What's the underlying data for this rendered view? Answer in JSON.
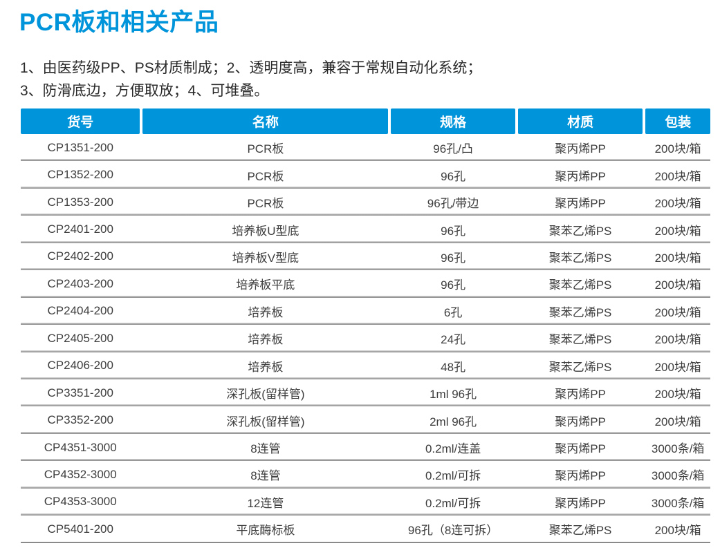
{
  "page": {
    "title": "PCR板和相关产品",
    "description_line_1": "1、由医药级PP、PS材质制成；2、透明度高，兼容于常规自动化系统；",
    "description_line_2": "3、防滑底边，方便取放；4、可堆叠。"
  },
  "colors": {
    "accent_blue": "#0094da",
    "header_text": "#ffffff",
    "body_text": "#3d3d3d",
    "row_separator": "#9a9a9a"
  },
  "table": {
    "headers": [
      "货号",
      "名称",
      "规格",
      "材质",
      "包装"
    ],
    "rows": [
      [
        "CP1351-200",
        "PCR板",
        "96孔/凸",
        "聚丙烯PP",
        "200块/箱"
      ],
      [
        "CP1352-200",
        "PCR板",
        "96孔",
        "聚丙烯PP",
        "200块/箱"
      ],
      [
        "CP1353-200",
        "PCR板",
        "96孔/带边",
        "聚丙烯PP",
        "200块/箱"
      ],
      [
        "CP2401-200",
        "培养板U型底",
        "96孔",
        "聚苯乙烯PS",
        "200块/箱"
      ],
      [
        "CP2402-200",
        "培养板V型底",
        "96孔",
        "聚苯乙烯PS",
        "200块/箱"
      ],
      [
        "CP2403-200",
        "培养板平底",
        "96孔",
        "聚苯乙烯PS",
        "200块/箱"
      ],
      [
        "CP2404-200",
        "培养板",
        "6孔",
        "聚苯乙烯PS",
        "200块/箱"
      ],
      [
        "CP2405-200",
        "培养板",
        "24孔",
        "聚苯乙烯PS",
        "200块/箱"
      ],
      [
        "CP2406-200",
        "培养板",
        "48孔",
        "聚苯乙烯PS",
        "200块/箱"
      ],
      [
        "CP3351-200",
        "深孔板(留样管)",
        "1ml 96孔",
        "聚丙烯PP",
        "200块/箱"
      ],
      [
        "CP3352-200",
        "深孔板(留样管)",
        "2ml 96孔",
        "聚丙烯PP",
        "200块/箱"
      ],
      [
        "CP4351-3000",
        "8连管",
        "0.2ml/连盖",
        "聚丙烯PP",
        "3000条/箱"
      ],
      [
        "CP4352-3000",
        "8连管",
        "0.2ml/可拆",
        "聚丙烯PP",
        "3000条/箱"
      ],
      [
        "CP4353-3000",
        "12连管",
        "0.2ml/可拆",
        "聚丙烯PP",
        "3000条/箱"
      ],
      [
        "CP5401-200",
        "平底酶标板",
        "96孔（8连可拆）",
        "聚苯乙烯PS",
        "200块/箱"
      ]
    ]
  }
}
